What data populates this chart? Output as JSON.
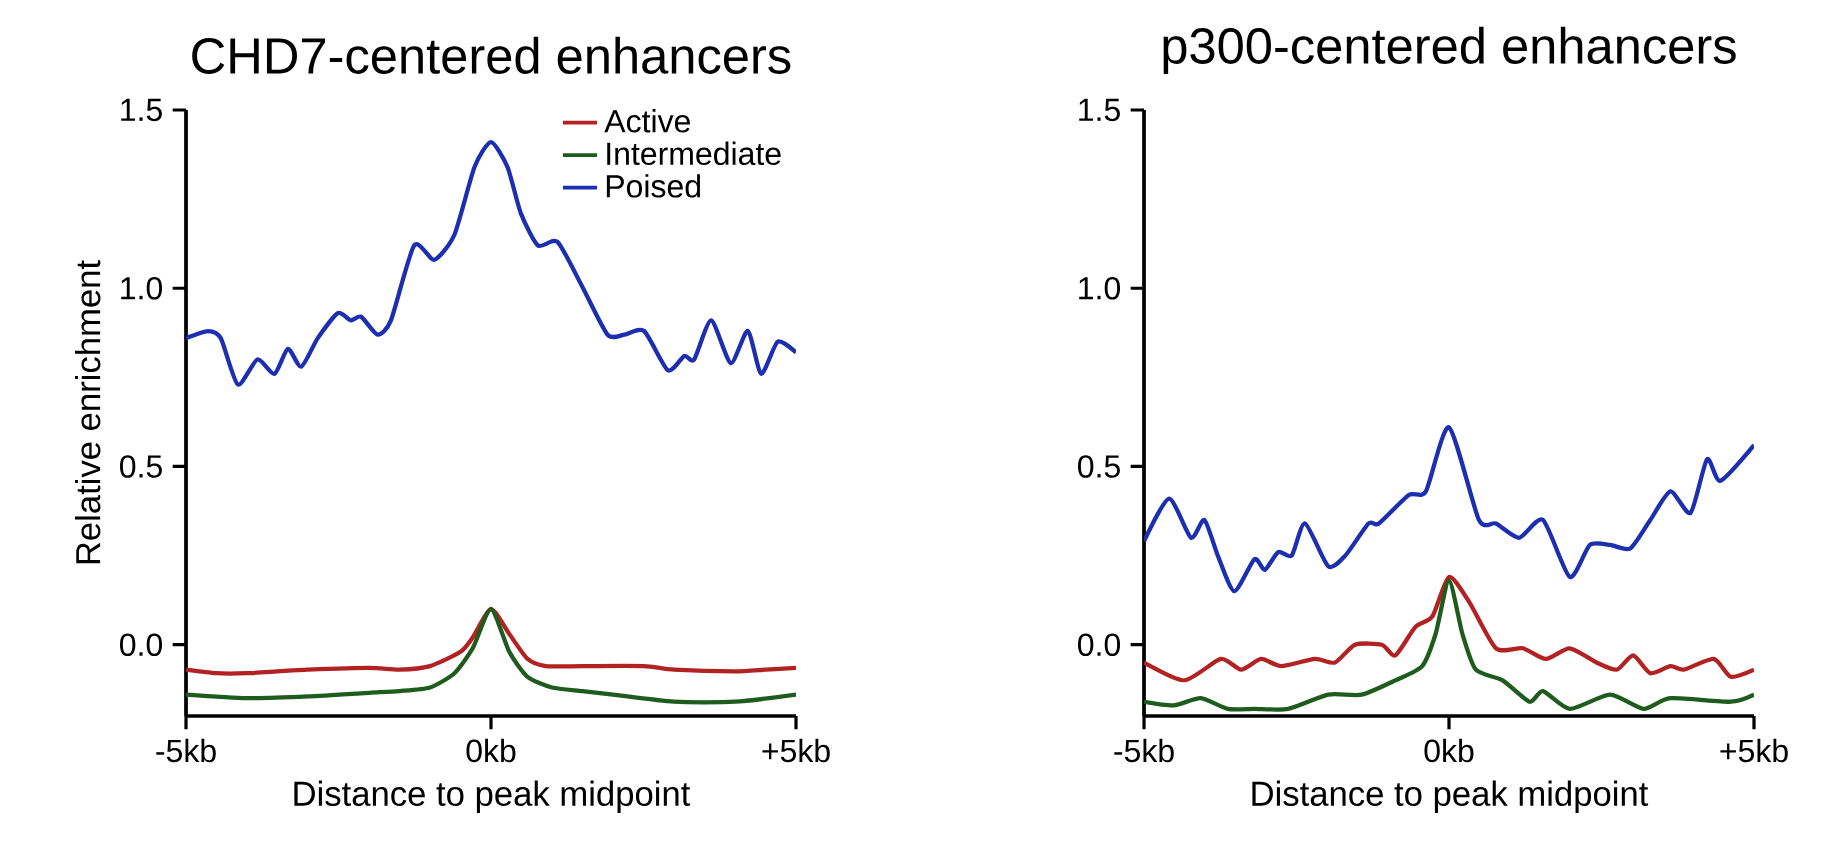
{
  "chart_data": [
    {
      "type": "line",
      "title": "CHD7-centered enhancers",
      "xlabel": "Distance to peak midpoint",
      "ylabel": "Relative enrichment",
      "xlim": [
        -5,
        5
      ],
      "xticks": [
        {
          "value": -5,
          "label": "-5kb"
        },
        {
          "value": 0,
          "label": "0kb"
        },
        {
          "value": 5,
          "label": "+5kb"
        }
      ],
      "ylim": [
        -0.2,
        1.5
      ],
      "yticks": [
        {
          "value": 0,
          "label": "0.0"
        },
        {
          "value": 0.5,
          "label": "0.5"
        },
        {
          "value": 1,
          "label": "1.0"
        },
        {
          "value": 1.5,
          "label": "1.5"
        }
      ],
      "legend": "top right",
      "grid": false,
      "marker": "none",
      "line_style": "solid",
      "series": [
        {
          "name": "Active",
          "color": "#b22222",
          "x": [
            -5,
            -4.5,
            -4,
            -3.5,
            -3,
            -2,
            -1.5,
            -1,
            -0.5,
            -0.3,
            0,
            0.3,
            0.6,
            0.9,
            1.5,
            2.5,
            3,
            4,
            4.5,
            5
          ],
          "values": [
            -0.07,
            -0.08,
            -0.08,
            -0.075,
            -0.07,
            -0.065,
            -0.07,
            -0.06,
            -0.02,
            0.02,
            0.1,
            0.03,
            -0.04,
            -0.06,
            -0.06,
            -0.06,
            -0.07,
            -0.075,
            -0.07,
            -0.065
          ]
        },
        {
          "name": "Intermediate",
          "color": "#1e5c1e",
          "x": [
            -5,
            -4,
            -3,
            -2,
            -1.5,
            -1,
            -0.6,
            -0.3,
            0,
            0.3,
            0.6,
            1,
            1.5,
            2,
            3,
            4,
            5
          ],
          "values": [
            -0.14,
            -0.15,
            -0.145,
            -0.135,
            -0.13,
            -0.12,
            -0.08,
            -0.01,
            0.1,
            -0.02,
            -0.09,
            -0.12,
            -0.13,
            -0.14,
            -0.16,
            -0.16,
            -0.14
          ]
        },
        {
          "name": "Poised",
          "color": "#1c2fb0",
          "x": [
            -5,
            -4.64,
            -4.43,
            -4.15,
            -3.83,
            -3.55,
            -3.33,
            -3.11,
            -2.84,
            -2.51,
            -2.3,
            -2.13,
            -1.86,
            -1.64,
            -1.26,
            -0.93,
            -0.6,
            -0.27,
            0,
            0.27,
            0.49,
            0.77,
            1.09,
            1.48,
            1.91,
            2.19,
            2.51,
            2.9,
            3.17,
            3.33,
            3.61,
            3.93,
            4.21,
            4.43,
            4.7,
            5
          ],
          "values": [
            0.86,
            0.88,
            0.86,
            0.73,
            0.8,
            0.76,
            0.83,
            0.78,
            0.86,
            0.93,
            0.91,
            0.92,
            0.87,
            0.91,
            1.12,
            1.08,
            1.15,
            1.34,
            1.41,
            1.34,
            1.21,
            1.12,
            1.13,
            1.01,
            0.87,
            0.87,
            0.88,
            0.77,
            0.81,
            0.8,
            0.91,
            0.79,
            0.88,
            0.76,
            0.85,
            0.82
          ]
        }
      ]
    },
    {
      "type": "line",
      "title": "p300-centered enhancers",
      "xlabel": "Distance to peak midpoint",
      "xlim": [
        -5,
        5
      ],
      "xticks": [
        {
          "value": -5,
          "label": "-5kb"
        },
        {
          "value": 0,
          "label": "0kb"
        },
        {
          "value": 5,
          "label": "+5kb"
        }
      ],
      "ylim": [
        -0.2,
        1.5
      ],
      "yticks": [
        {
          "value": 0,
          "label": "0.0"
        },
        {
          "value": 0.5,
          "label": "0.5"
        },
        {
          "value": 1,
          "label": "1.0"
        },
        {
          "value": 1.5,
          "label": "1.5"
        }
      ],
      "grid": false,
      "marker": "none",
      "line_style": "solid",
      "series": [
        {
          "color": "#b22222",
          "x": [
            -5,
            -4.34,
            -3.74,
            -3.41,
            -3.08,
            -2.75,
            -2.2,
            -1.87,
            -1.54,
            -1.1,
            -0.88,
            -0.55,
            -0.27,
            0,
            0.33,
            0.77,
            1.21,
            1.59,
            1.98,
            2.42,
            2.75,
            3.02,
            3.3,
            3.63,
            3.85,
            4.34,
            4.62,
            5
          ],
          "values": [
            -0.05,
            -0.1,
            -0.04,
            -0.07,
            -0.04,
            -0.06,
            -0.04,
            -0.05,
            0.0,
            0.0,
            -0.03,
            0.05,
            0.08,
            0.19,
            0.12,
            -0.01,
            -0.01,
            -0.04,
            -0.01,
            -0.05,
            -0.07,
            -0.03,
            -0.08,
            -0.06,
            -0.07,
            -0.04,
            -0.09,
            -0.07
          ]
        },
        {
          "color": "#1e5c1e",
          "x": [
            -5,
            -4.51,
            -4.07,
            -3.63,
            -3.19,
            -2.64,
            -1.98,
            -1.43,
            -0.88,
            -0.44,
            -0.22,
            0,
            0.22,
            0.44,
            0.88,
            1.32,
            1.54,
            1.98,
            2.64,
            3.19,
            3.63,
            4.62,
            5
          ],
          "values": [
            -0.16,
            -0.17,
            -0.15,
            -0.18,
            -0.18,
            -0.18,
            -0.14,
            -0.14,
            -0.1,
            -0.06,
            0.03,
            0.18,
            0.03,
            -0.07,
            -0.1,
            -0.16,
            -0.13,
            -0.18,
            -0.14,
            -0.18,
            -0.15,
            -0.16,
            -0.14
          ]
        },
        {
          "color": "#1c2fb0",
          "x": [
            -5,
            -4.59,
            -4.23,
            -4.01,
            -3.79,
            -3.52,
            -3.19,
            -3.02,
            -2.8,
            -2.58,
            -2.36,
            -1.98,
            -1.7,
            -1.32,
            -1.15,
            -0.66,
            -0.38,
            0,
            0.49,
            0.77,
            1.15,
            1.54,
            1.98,
            2.31,
            2.64,
            2.97,
            3.3,
            3.63,
            3.96,
            4.23,
            4.45,
            5
          ],
          "values": [
            0.29,
            0.41,
            0.3,
            0.35,
            0.25,
            0.15,
            0.24,
            0.21,
            0.26,
            0.25,
            0.34,
            0.22,
            0.25,
            0.34,
            0.34,
            0.42,
            0.43,
            0.61,
            0.35,
            0.34,
            0.3,
            0.35,
            0.19,
            0.28,
            0.28,
            0.27,
            0.35,
            0.43,
            0.37,
            0.52,
            0.46,
            0.56
          ]
        }
      ]
    }
  ]
}
